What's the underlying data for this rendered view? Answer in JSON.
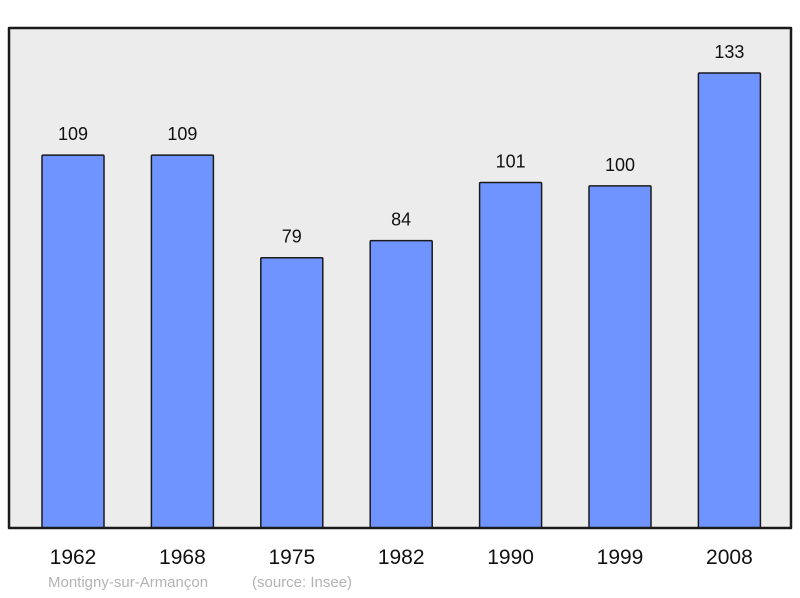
{
  "chart_data": {
    "type": "bar",
    "categories": [
      "1962",
      "1968",
      "1975",
      "1982",
      "1990",
      "1999",
      "2008"
    ],
    "values": [
      109,
      109,
      79,
      84,
      101,
      100,
      133
    ],
    "ylim": [
      0,
      146
    ],
    "grid": false,
    "colors": {
      "bar": "#7094ff",
      "background": "#ececec",
      "frame": "#1a1a1a"
    }
  },
  "footer": {
    "place": "Montigny-sur-Armançon",
    "source": "(source: Insee)"
  }
}
